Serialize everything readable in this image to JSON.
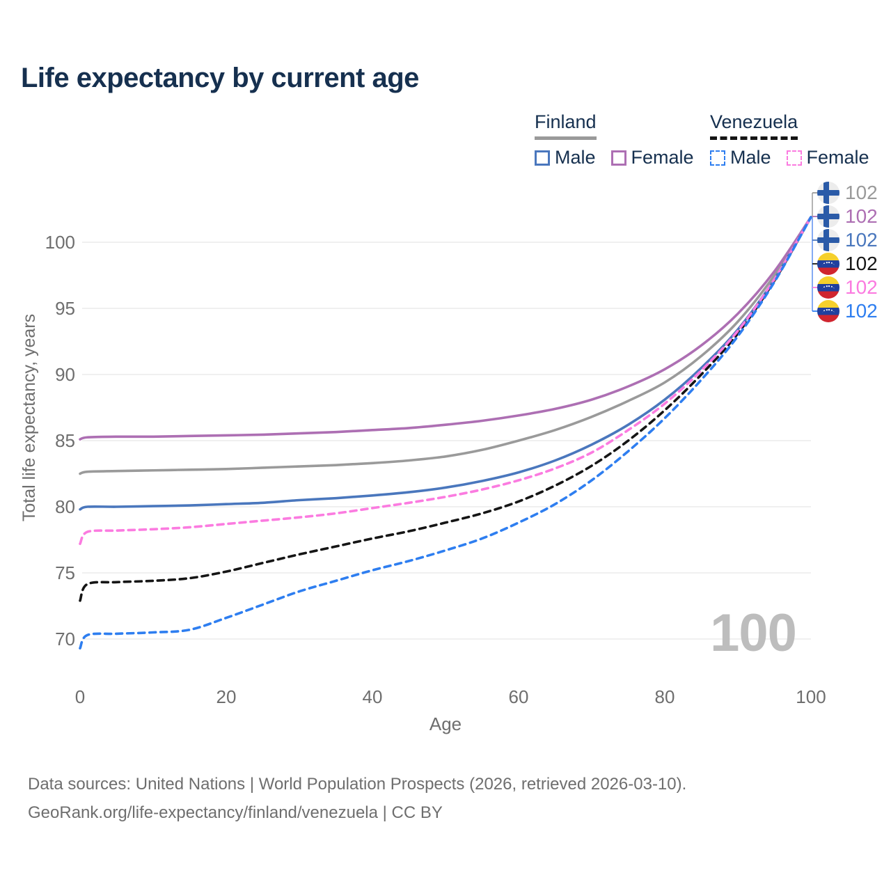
{
  "title": "Life expectancy by current age",
  "legend": {
    "finland": {
      "label": "Finland",
      "male_label": "Male",
      "female_label": "Female"
    },
    "venezuela": {
      "label": "Venezuela",
      "male_label": "Male",
      "female_label": "Female"
    }
  },
  "watermark": "100",
  "footer": {
    "line1": "Data sources: United Nations | World Population Prospects (2026, retrieved 2026-03-10).",
    "line2": "GeoRank.org/life-expectancy/finland/venezuela | CC BY"
  },
  "colors": {
    "finland": "#9a9a9a",
    "finland_female": "#ad6fb3",
    "finland_male": "#4a77bd",
    "venezuela": "#151515",
    "venezuela_female": "#fb7be0",
    "venezuela_male": "#2e7ef0",
    "grid": "#e7e7e7",
    "axis_text": "#6e6e6e",
    "title_text": "#16304f"
  },
  "end_labels": [
    {
      "flag": "finland",
      "value": "102",
      "color": "#9a9a9a",
      "y": 277
    },
    {
      "flag": "finland",
      "value": "102",
      "color": "#ad6fb3",
      "y": 311
    },
    {
      "flag": "finland",
      "value": "102",
      "color": "#4a77bd",
      "y": 345
    },
    {
      "flag": "venezuela",
      "value": "102",
      "color": "#151515",
      "y": 379
    },
    {
      "flag": "venezuela",
      "value": "102",
      "color": "#fb7be0",
      "y": 413
    },
    {
      "flag": "venezuela",
      "value": "102",
      "color": "#2e7ef0",
      "y": 447
    }
  ],
  "chart_data": {
    "type": "line",
    "title": "Life expectancy by current age",
    "xlabel": "Age",
    "ylabel": "Total life expectancy, years",
    "xlim": [
      0,
      100
    ],
    "ylim": [
      69,
      103
    ],
    "x_ticks": [
      0,
      20,
      40,
      60,
      80,
      100
    ],
    "y_ticks": [
      70,
      75,
      80,
      85,
      90,
      95,
      100
    ],
    "grid": true,
    "legend_position": "top-right",
    "x": [
      0,
      1,
      5,
      10,
      15,
      20,
      25,
      30,
      35,
      40,
      45,
      50,
      55,
      60,
      65,
      70,
      75,
      80,
      85,
      90,
      95,
      100
    ],
    "series": [
      {
        "name": "Finland",
        "sex": "both",
        "color": "#9a9a9a",
        "dash": false,
        "values": [
          82.5,
          82.65,
          82.7,
          82.75,
          82.8,
          82.85,
          82.95,
          83.05,
          83.15,
          83.3,
          83.5,
          83.8,
          84.3,
          85.0,
          85.8,
          86.8,
          88.0,
          89.4,
          91.4,
          94.0,
          97.5,
          101.9
        ]
      },
      {
        "name": "Finland Male",
        "sex": "male",
        "color": "#4a77bd",
        "dash": false,
        "values": [
          79.8,
          80.0,
          80.0,
          80.05,
          80.1,
          80.2,
          80.3,
          80.5,
          80.65,
          80.85,
          81.1,
          81.45,
          81.95,
          82.6,
          83.5,
          84.7,
          86.2,
          88.1,
          90.5,
          93.4,
          97.2,
          101.9
        ]
      },
      {
        "name": "Finland Female",
        "sex": "female",
        "color": "#ad6fb3",
        "dash": false,
        "values": [
          85.1,
          85.25,
          85.3,
          85.3,
          85.35,
          85.4,
          85.45,
          85.55,
          85.65,
          85.8,
          85.95,
          86.2,
          86.5,
          86.9,
          87.4,
          88.1,
          89.1,
          90.4,
          92.2,
          94.6,
          97.8,
          101.9
        ]
      },
      {
        "name": "Venezuela",
        "sex": "both",
        "color": "#151515",
        "dash": true,
        "values": [
          72.9,
          74.15,
          74.3,
          74.4,
          74.6,
          75.1,
          75.75,
          76.4,
          77.0,
          77.6,
          78.15,
          78.8,
          79.5,
          80.4,
          81.6,
          83.1,
          85.0,
          87.3,
          90.0,
          93.1,
          97.1,
          101.9
        ]
      },
      {
        "name": "Venezuela Female",
        "sex": "female",
        "color": "#fb7be0",
        "dash": true,
        "values": [
          77.2,
          78.1,
          78.2,
          78.3,
          78.45,
          78.7,
          78.95,
          79.2,
          79.5,
          79.9,
          80.3,
          80.75,
          81.3,
          82.0,
          82.9,
          84.1,
          85.8,
          87.8,
          90.3,
          93.3,
          97.2,
          101.9
        ]
      },
      {
        "name": "Venezuela Male",
        "sex": "male",
        "color": "#2e7ef0",
        "dash": true,
        "values": [
          69.3,
          70.3,
          70.4,
          70.5,
          70.7,
          71.6,
          72.6,
          73.6,
          74.4,
          75.2,
          75.9,
          76.7,
          77.6,
          78.8,
          80.2,
          82.0,
          84.2,
          86.7,
          89.6,
          92.9,
          97.0,
          101.9
        ]
      }
    ]
  }
}
